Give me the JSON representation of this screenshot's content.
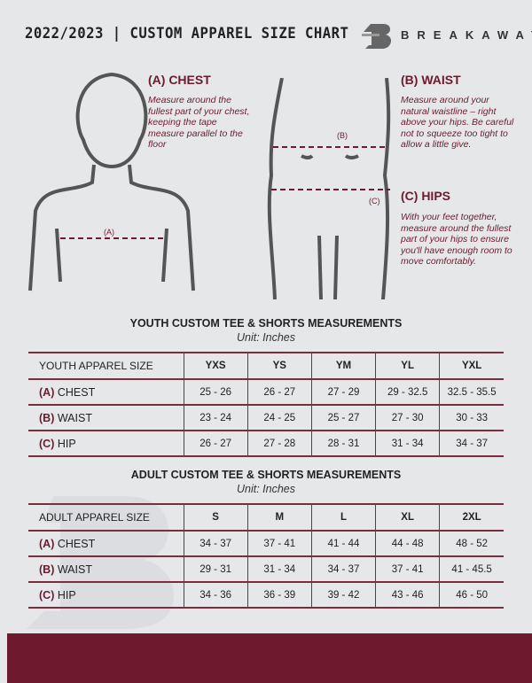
{
  "header": {
    "title": "2022/2023 | CUSTOM APPAREL SIZE CHART",
    "brand": "BREAKAWAY"
  },
  "measures": {
    "chest": {
      "heading": "(A) CHEST",
      "text": "Measure around the fullest part of your chest, keeping the tape measure parallel to the floor",
      "marker": "(A)"
    },
    "waist": {
      "heading": "(B) WAIST",
      "text": "Measure around your natural waistline – right above your hips. Be careful not to squeeze too tight to allow a little give.",
      "marker": "(B)"
    },
    "hips": {
      "heading": "(C) HIPS",
      "text": "With your feet together, measure around the fullest part of your hips to ensure you'll have enough room to move comfortably.",
      "marker": "(C)"
    }
  },
  "youth": {
    "title": "YOUTH CUSTOM TEE & SHORTS MEASUREMENTS",
    "unit": "Unit: Inches",
    "header": "YOUTH APPAREL SIZE",
    "sizes": [
      "YXS",
      "YS",
      "YM",
      "YL",
      "YXL"
    ],
    "rows": [
      {
        "code": "(A)",
        "label": "CHEST",
        "values": [
          "25 - 26",
          "26 - 27",
          "27 - 29",
          "29 - 32.5",
          "32.5 - 35.5"
        ]
      },
      {
        "code": "(B)",
        "label": "WAIST",
        "values": [
          "23 - 24",
          "24 - 25",
          "25 - 27",
          "27 - 30",
          "30 - 33"
        ]
      },
      {
        "code": "(C)",
        "label": "HIP",
        "values": [
          "26 - 27",
          "27 - 28",
          "28 - 31",
          "31 - 34",
          "34 - 37"
        ]
      }
    ]
  },
  "adult": {
    "title": "ADULT CUSTOM TEE & SHORTS MEASUREMENTS",
    "unit": "Unit: Inches",
    "header": "ADULT APPAREL SIZE",
    "sizes": [
      "S",
      "M",
      "L",
      "XL",
      "2XL"
    ],
    "rows": [
      {
        "code": "(A)",
        "label": "CHEST",
        "values": [
          "34 - 37",
          "37 - 41",
          "41 - 44",
          "44 - 48",
          "48 - 52"
        ]
      },
      {
        "code": "(B)",
        "label": "WAIST",
        "values": [
          "29 - 31",
          "31 - 34",
          "34 - 37",
          "37 - 41",
          "41 - 45.5"
        ]
      },
      {
        "code": "(C)",
        "label": "HIP",
        "values": [
          "34 - 36",
          "36 - 39",
          "39 - 42",
          "43 - 46",
          "46 - 50"
        ]
      }
    ]
  },
  "colors": {
    "accent": "#6e1a2e",
    "background": "#e6e7e9"
  }
}
